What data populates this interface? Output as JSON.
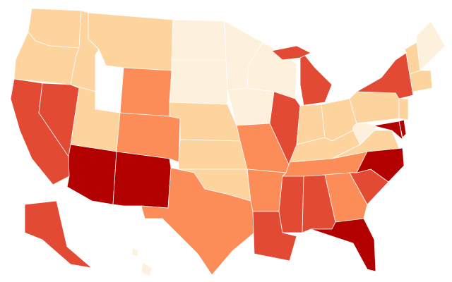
{
  "map": {
    "region_colors": [
      "#fdd49e",
      "#fdd49e",
      "#e34a33",
      "#e34a33",
      "#fdd49e",
      "#fdd49e",
      "#fc8d59",
      "#fdd49e",
      "#b30000",
      "#fc8d59",
      "#b30000",
      "#fdf0dc",
      "#fdf0dc",
      "#fdd49e",
      "#fdd49e",
      "#fdd49e",
      "#fc8d59",
      "#fdf0dc",
      "#fdf0dc",
      "#fc8d59",
      "#fc8d59",
      "#e34a33",
      "#fdf0dc",
      "#e34a33",
      "#e34a33",
      "#e34a33",
      "#fdd49e",
      "#fdd49e",
      "#fdd49e",
      "#fc8d59",
      "#e34a33",
      "#e34a33",
      "#fc8d59",
      "#b30000",
      "#e34a33",
      "#b30000",
      "#fdd49e",
      "#fdf0dc",
      "#fdd49e",
      "#e34a33",
      "#b30000",
      "#b30000",
      "#fdd49e",
      "#fdf0dc",
      "#fdd49e",
      "#fdd49e",
      "#e34a33",
      "#fdf0dc",
      "#fdf0dc"
    ]
  }
}
